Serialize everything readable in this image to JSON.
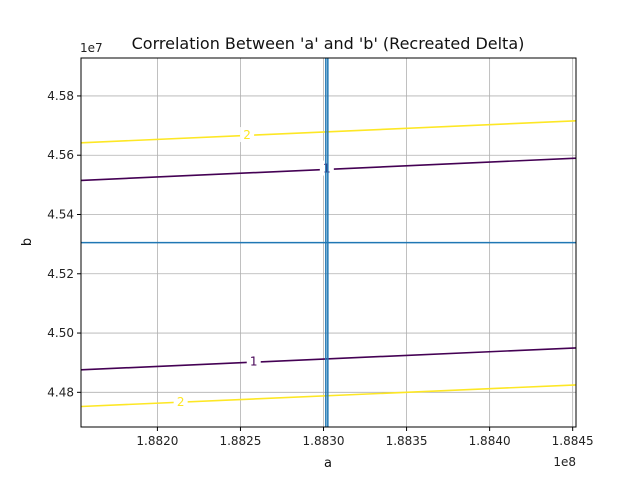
{
  "chart_data": {
    "type": "line",
    "title": "Correlation Between 'a' and 'b' (Recreated Delta)",
    "xlabel": "a",
    "ylabel": "b",
    "x_offset_text": "1e8",
    "y_offset_text": "1e7",
    "xlim": [
      1.88154,
      1.88452
    ],
    "ylim": [
      4.4683,
      4.5928
    ],
    "xticks": [
      1.882,
      1.8825,
      1.883,
      1.8835,
      1.884,
      1.8845
    ],
    "xtick_labels": [
      "1.8820",
      "1.8825",
      "1.8830",
      "1.8835",
      "1.8840",
      "1.8845"
    ],
    "yticks": [
      4.48,
      4.5,
      4.52,
      4.54,
      4.56,
      4.58
    ],
    "ytick_labels": [
      "4.48",
      "4.50",
      "4.52",
      "4.54",
      "4.56",
      "4.58"
    ],
    "grid": true,
    "reference_lines": {
      "color": "#1f77b4",
      "vertical_x": 1.88302,
      "horizontal_y": 4.5305
    },
    "series": [
      {
        "color": "#fde725",
        "label": "2",
        "label_at": [
          1.88254,
          4.5668
        ],
        "x": [
          1.88154,
          1.88452
        ],
        "y": [
          4.5642,
          4.5716
        ]
      },
      {
        "color": "#440154",
        "label": "1",
        "label_at": [
          1.88302,
          4.5555
        ],
        "x": [
          1.88154,
          1.88452
        ],
        "y": [
          4.5515,
          4.559
        ]
      },
      {
        "color": "#440154",
        "label": "1",
        "label_at": [
          1.88258,
          4.4904
        ],
        "x": [
          1.88154,
          1.88452
        ],
        "y": [
          4.4876,
          4.495
        ]
      },
      {
        "color": "#fde725",
        "label": "2",
        "label_at": [
          1.88214,
          4.4768
        ],
        "x": [
          1.88154,
          1.88452
        ],
        "y": [
          4.4752,
          4.4825
        ]
      }
    ]
  }
}
